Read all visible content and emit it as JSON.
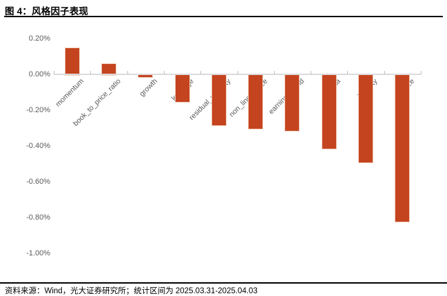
{
  "header": {
    "title": "图 4：风格因子表现"
  },
  "footer": {
    "source": "资料来源：Wind，光大证券研究所；统计区间为 2025.03.31-2025.04.03"
  },
  "colors": {
    "bar_fill": "#C4441F",
    "bar_border": "#F2CDB9",
    "axis_line": "#DBDBDB",
    "category_tick": "#BFBFBF",
    "tick_label": "#595959",
    "title_text": "#000000"
  },
  "chart_data": {
    "type": "bar",
    "title": "风格因子表现",
    "categories": [
      "momentum",
      "book_to_price_ratio",
      "growth",
      "leverage",
      "residual_volatility",
      "non_linear_size",
      "earnings_yield",
      "beta",
      "liquidity",
      "size"
    ],
    "values": [
      0.15,
      0.06,
      -0.01,
      -0.15,
      -0.28,
      -0.3,
      -0.31,
      -0.41,
      -0.49,
      -0.82
    ],
    "value_unit": "%",
    "xlabel": "",
    "ylabel": "",
    "ylim": [
      -1.0,
      0.2
    ],
    "grid": "off",
    "legend": "none",
    "x_tick_label_rotation_deg": 45,
    "y_ticks": [
      {
        "label": "0.20%",
        "value": 0.2
      },
      {
        "label": "0.00%",
        "value": 0.0
      },
      {
        "label": "-0.20%",
        "value": -0.2
      },
      {
        "label": "-0.40%",
        "value": -0.4
      },
      {
        "label": "-0.60%",
        "value": -0.6
      },
      {
        "label": "-0.80%",
        "value": -0.8
      },
      {
        "label": "-1.00%",
        "value": -1.0
      }
    ]
  }
}
